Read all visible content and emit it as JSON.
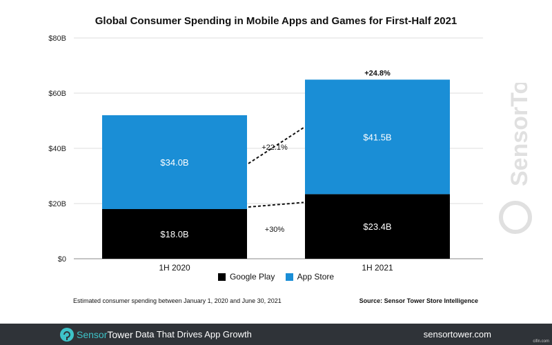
{
  "chart_data": {
    "type": "bar",
    "stacked": true,
    "title": "Global Consumer Spending in Mobile Apps and Games for First-Half 2021",
    "categories": [
      "1H 2020",
      "1H 2021"
    ],
    "series": [
      {
        "name": "Google Play",
        "values": [
          18.0,
          23.4
        ],
        "labels": [
          "$18.0B",
          "$23.4B"
        ],
        "color": "#000000"
      },
      {
        "name": "App Store",
        "values": [
          34.0,
          41.5
        ],
        "labels": [
          "$34.0B",
          "$41.5B"
        ],
        "color": "#1a8ed6"
      }
    ],
    "ylim": [
      0,
      80
    ],
    "yticks": [
      0,
      20,
      40,
      60,
      80
    ],
    "ytick_labels": [
      "$0",
      "$20B",
      "$40B",
      "$60B",
      "$80B"
    ],
    "grid": true,
    "legend": "bottom",
    "annotations": {
      "google_play_growth": "+30%",
      "app_store_growth": "+22.1%",
      "total_growth": "+24.8%"
    }
  },
  "note": "Estimated consumer spending between January 1, 2020 and June 30, 2021",
  "source": "Source: Sensor Tower Store Intelligence",
  "footer": {
    "brand_a": "Sensor",
    "brand_b": "Tower",
    "tagline": "Data That Drives App Growth",
    "site": "sensortower.com",
    "accent": "#3ec3c8",
    "bg": "#2f3338"
  },
  "watermark": "SensorTower",
  "corner_mark": "cifin.com"
}
